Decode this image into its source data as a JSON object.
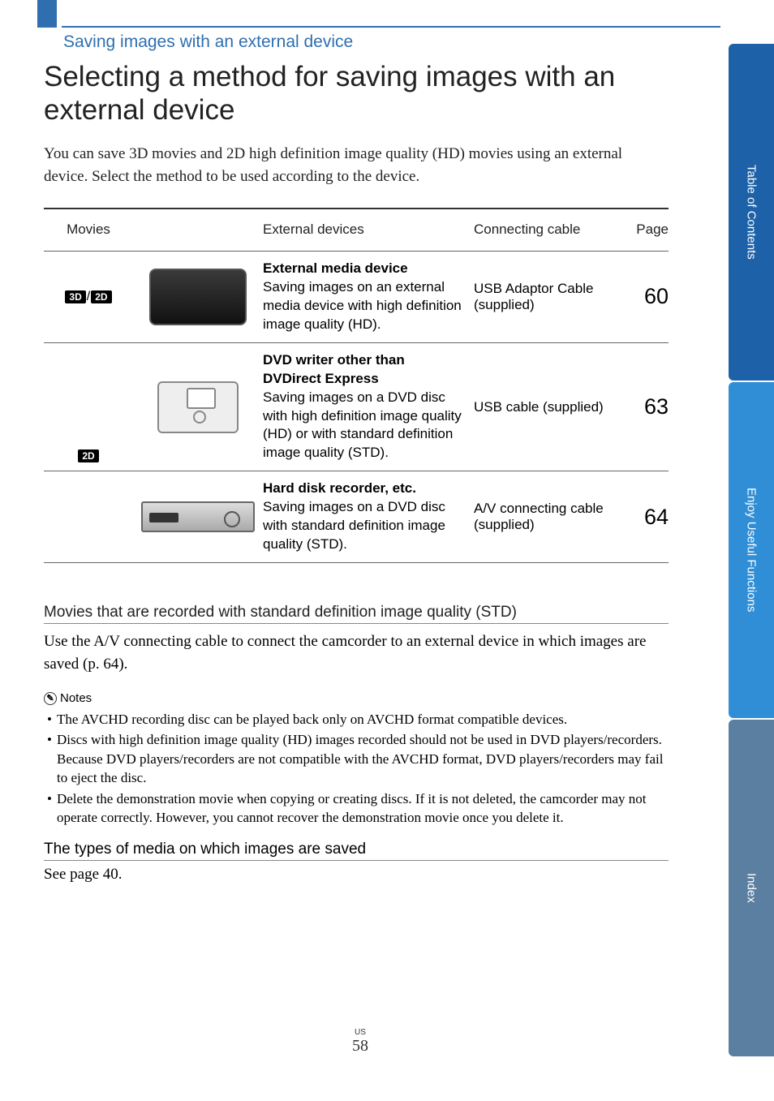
{
  "breadcrumb": "Saving images with an external device",
  "title": "Selecting a method for saving images with an external device",
  "intro": "You can save 3D movies and 2D high definition image quality (HD) movies using an external device. Select the method to be used according to the device.",
  "table": {
    "headers": {
      "movies": "Movies",
      "devices": "External devices",
      "cable": "Connecting cable",
      "page": "Page"
    },
    "rows": [
      {
        "movie_badges": [
          "3D",
          "2D"
        ],
        "title": "External media device",
        "desc": "Saving images on an external media device with high definition image quality (HD).",
        "cable": "USB Adaptor Cable (supplied)",
        "page": "60",
        "icon": "hdd"
      },
      {
        "movie_badges": [
          "2D"
        ],
        "title": "DVD writer other than DVDirect Express",
        "desc": "Saving images on a DVD disc with high definition image quality (HD) or with standard definition image quality (STD).",
        "cable": "USB cable (supplied)",
        "page": "63",
        "icon": "dvd"
      },
      {
        "movie_badges": [],
        "title": "Hard disk recorder, etc.",
        "desc": "Saving images on a DVD disc with standard definition image quality (STD).",
        "cable": "A/V connecting cable (supplied)",
        "page": "64",
        "icon": "recorder"
      }
    ]
  },
  "std_section": {
    "heading": "Movies that are recorded with standard definition image quality (STD)",
    "text": "Use the A/V connecting cable to connect the camcorder to an external device in which images are saved (p. 64)."
  },
  "notes": {
    "label": "Notes",
    "items": [
      "The AVCHD recording disc can be played back only on AVCHD format compatible devices.",
      "Discs with high definition image quality (HD) images recorded should not be used in DVD players/recorders. Because DVD players/recorders are not compatible with the AVCHD format, DVD players/recorders may fail to eject the disc.",
      "Delete the demonstration movie when copying or creating discs. If it is not deleted, the camcorder may not operate correctly. However, you cannot recover the demonstration movie once you delete it."
    ]
  },
  "media_section": {
    "heading": "The types of media on which images are saved",
    "text": "See page 40."
  },
  "footer": {
    "region": "US",
    "page": "58"
  },
  "tabs": [
    {
      "label": "Table of Contents",
      "bg": "#1d62a9"
    },
    {
      "label": "Enjoy Useful Functions",
      "bg": "#2f8ed6"
    },
    {
      "label": "Index",
      "bg": "#5a7fa0"
    }
  ],
  "colors": {
    "accent": "#2f6fb0"
  }
}
